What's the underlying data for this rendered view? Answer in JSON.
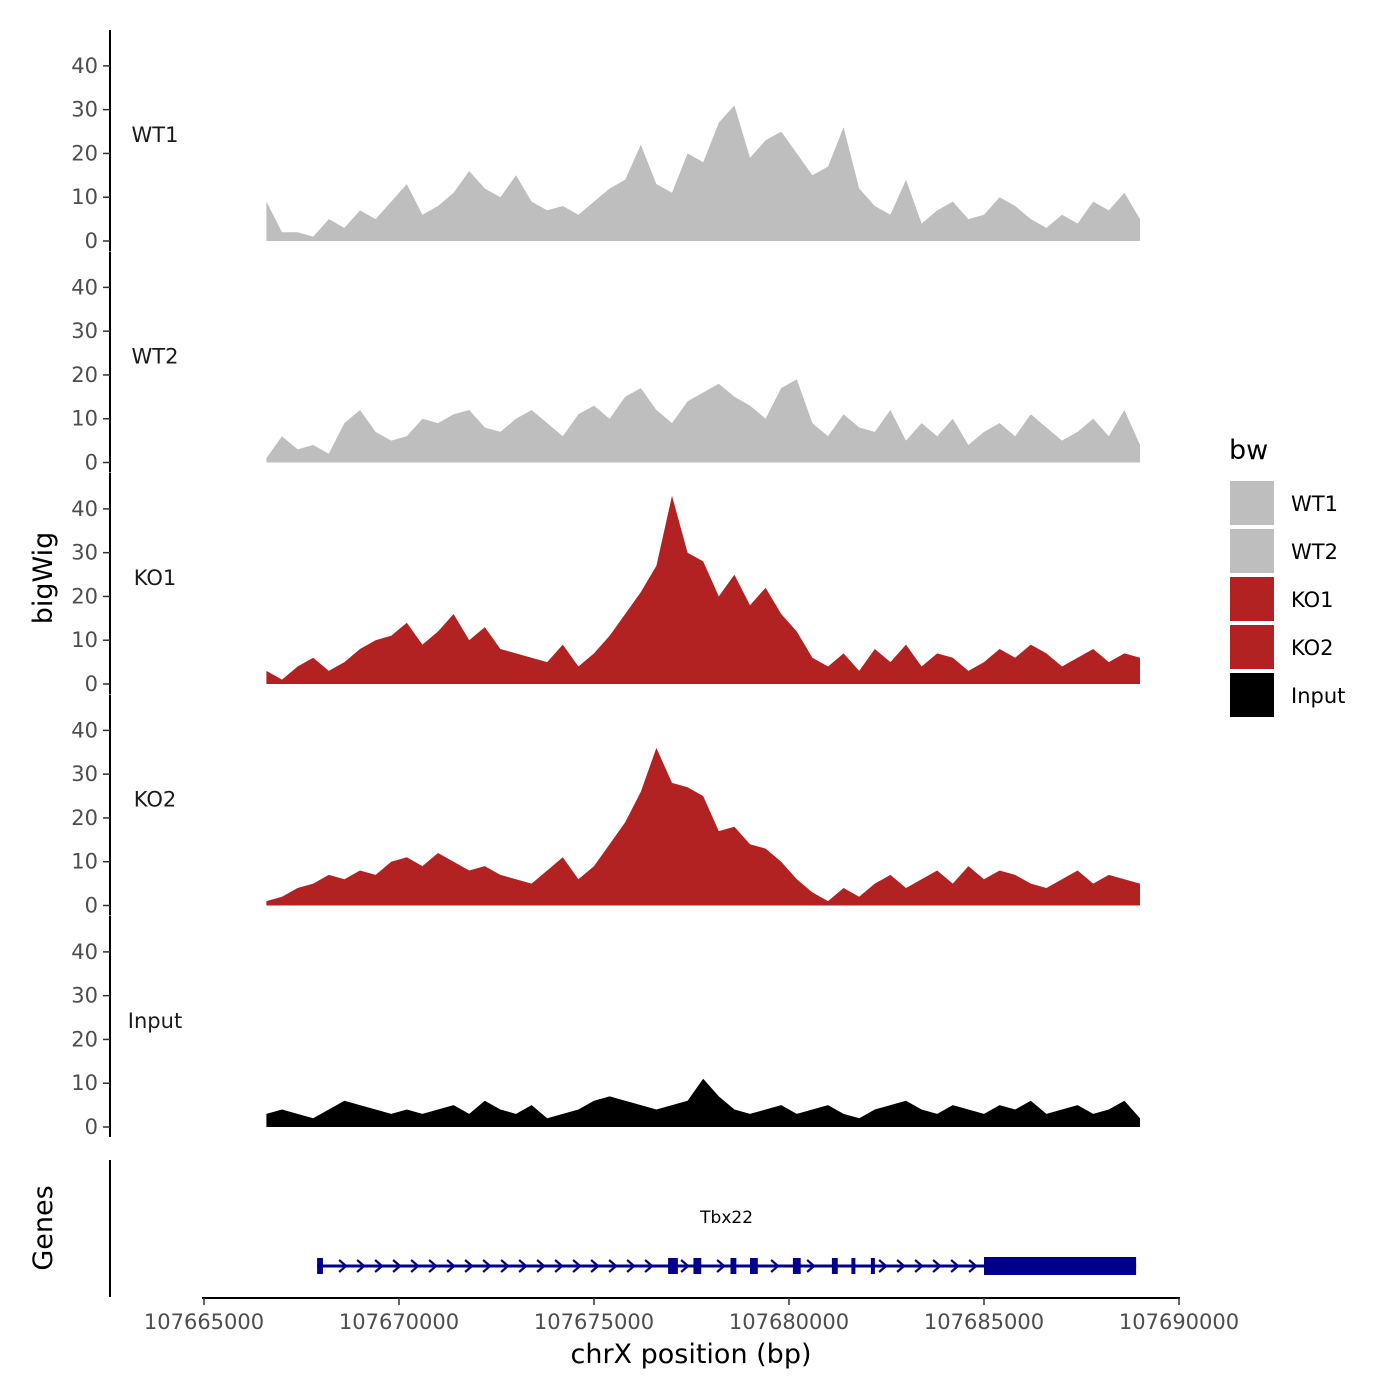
{
  "chart_data": {
    "type": "area",
    "ylabel": "bigWig",
    "xlabel": "chrX position (bp)",
    "xlim": [
      107665000,
      107690000
    ],
    "ylim": [
      0,
      45
    ],
    "yticks": [
      0,
      10,
      20,
      30,
      40
    ],
    "xticks": [
      107665000,
      107670000,
      107675000,
      107680000,
      107685000,
      107690000
    ],
    "xtick_labels": [
      "107665000",
      "107670000",
      "107675000",
      "107680000",
      "107685000",
      "107690000"
    ],
    "legend": {
      "title": "bw",
      "placement": "right",
      "entries": [
        {
          "name": "WT1",
          "color": "#bebebe"
        },
        {
          "name": "WT2",
          "color": "#bebebe"
        },
        {
          "name": "KO1",
          "color": "#b22222"
        },
        {
          "name": "KO2",
          "color": "#b22222"
        },
        {
          "name": "Input",
          "color": "#000000"
        }
      ]
    },
    "x": [
      107665000,
      107665400,
      107665800,
      107666200,
      107666600,
      107667000,
      107667400,
      107667800,
      107668200,
      107668600,
      107669000,
      107669400,
      107669800,
      107670200,
      107670600,
      107671000,
      107671400,
      107671800,
      107672200,
      107672600,
      107673000,
      107673400,
      107673800,
      107674200,
      107674600,
      107675000,
      107675400,
      107675800,
      107676200,
      107676600,
      107677000,
      107677400,
      107677800,
      107678200,
      107678600,
      107679000,
      107679400,
      107679800,
      107680200,
      107680600,
      107681000,
      107681400,
      107681800,
      107682200,
      107682600,
      107683000,
      107683400,
      107683800,
      107684200,
      107684600,
      107685000,
      107685400,
      107685800,
      107686200,
      107686600,
      107687000,
      107687400,
      107687800,
      107688200,
      107688600,
      107689000
    ],
    "series": [
      {
        "name": "WT1",
        "color": "#bebebe",
        "values": [
          null,
          null,
          null,
          null,
          9,
          2,
          2,
          1,
          5,
          3,
          7,
          5,
          9,
          13,
          6,
          8,
          11,
          16,
          12,
          10,
          15,
          9,
          7,
          8,
          6,
          9,
          12,
          14,
          22,
          13,
          11,
          20,
          18,
          27,
          31,
          19,
          23,
          25,
          20,
          15,
          17,
          26,
          12,
          8,
          6,
          14,
          4,
          7,
          9,
          5,
          6,
          10,
          8,
          5,
          3,
          6,
          4,
          9,
          7,
          11,
          5
        ]
      },
      {
        "name": "WT2",
        "color": "#bebebe",
        "values": [
          null,
          null,
          null,
          null,
          1,
          6,
          3,
          4,
          2,
          9,
          12,
          7,
          5,
          6,
          10,
          9,
          11,
          12,
          8,
          7,
          10,
          12,
          9,
          6,
          11,
          13,
          10,
          15,
          17,
          12,
          9,
          14,
          16,
          18,
          15,
          13,
          10,
          17,
          19,
          9,
          6,
          11,
          8,
          7,
          12,
          5,
          9,
          6,
          10,
          4,
          7,
          9,
          6,
          11,
          8,
          5,
          7,
          10,
          6,
          12,
          4
        ]
      },
      {
        "name": "KO1",
        "color": "#b22222",
        "values": [
          null,
          null,
          null,
          null,
          3,
          1,
          4,
          6,
          3,
          5,
          8,
          10,
          11,
          14,
          9,
          12,
          16,
          10,
          13,
          8,
          7,
          6,
          5,
          9,
          4,
          7,
          11,
          16,
          21,
          27,
          43,
          30,
          28,
          20,
          25,
          18,
          22,
          16,
          12,
          6,
          4,
          7,
          3,
          8,
          5,
          9,
          4,
          7,
          6,
          3,
          5,
          8,
          6,
          9,
          7,
          4,
          6,
          8,
          5,
          7,
          6
        ]
      },
      {
        "name": "KO2",
        "color": "#b22222",
        "values": [
          null,
          null,
          null,
          null,
          1,
          2,
          4,
          5,
          7,
          6,
          8,
          7,
          10,
          11,
          9,
          12,
          10,
          8,
          9,
          7,
          6,
          5,
          8,
          11,
          6,
          9,
          14,
          19,
          26,
          36,
          28,
          27,
          25,
          17,
          18,
          14,
          13,
          10,
          6,
          3,
          1,
          4,
          2,
          5,
          7,
          4,
          6,
          8,
          5,
          9,
          6,
          8,
          7,
          5,
          4,
          6,
          8,
          5,
          7,
          6,
          5
        ]
      },
      {
        "name": "Input",
        "color": "#000000",
        "values": [
          null,
          null,
          null,
          null,
          3,
          4,
          3,
          2,
          4,
          6,
          5,
          4,
          3,
          4,
          3,
          4,
          5,
          3,
          6,
          4,
          3,
          5,
          2,
          3,
          4,
          6,
          7,
          6,
          5,
          4,
          5,
          6,
          11,
          7,
          4,
          3,
          4,
          5,
          3,
          4,
          5,
          3,
          2,
          4,
          5,
          6,
          4,
          3,
          5,
          4,
          3,
          5,
          4,
          6,
          3,
          4,
          5,
          3,
          4,
          6,
          2
        ]
      }
    ],
    "gene_track": {
      "ylabel": "Genes",
      "gene": "Tbx22",
      "color": "#00008b",
      "start": 107667900,
      "end": 107688900,
      "exons": [
        [
          107667900,
          107668050
        ],
        [
          107676900,
          107677150
        ],
        [
          107677550,
          107677750
        ],
        [
          107678500,
          107678650
        ],
        [
          107679000,
          107679200
        ],
        [
          107680100,
          107680300
        ],
        [
          107681100,
          107681250
        ],
        [
          107681600,
          107681700
        ],
        [
          107682100,
          107682200
        ],
        [
          107685000,
          107688900
        ]
      ]
    }
  }
}
